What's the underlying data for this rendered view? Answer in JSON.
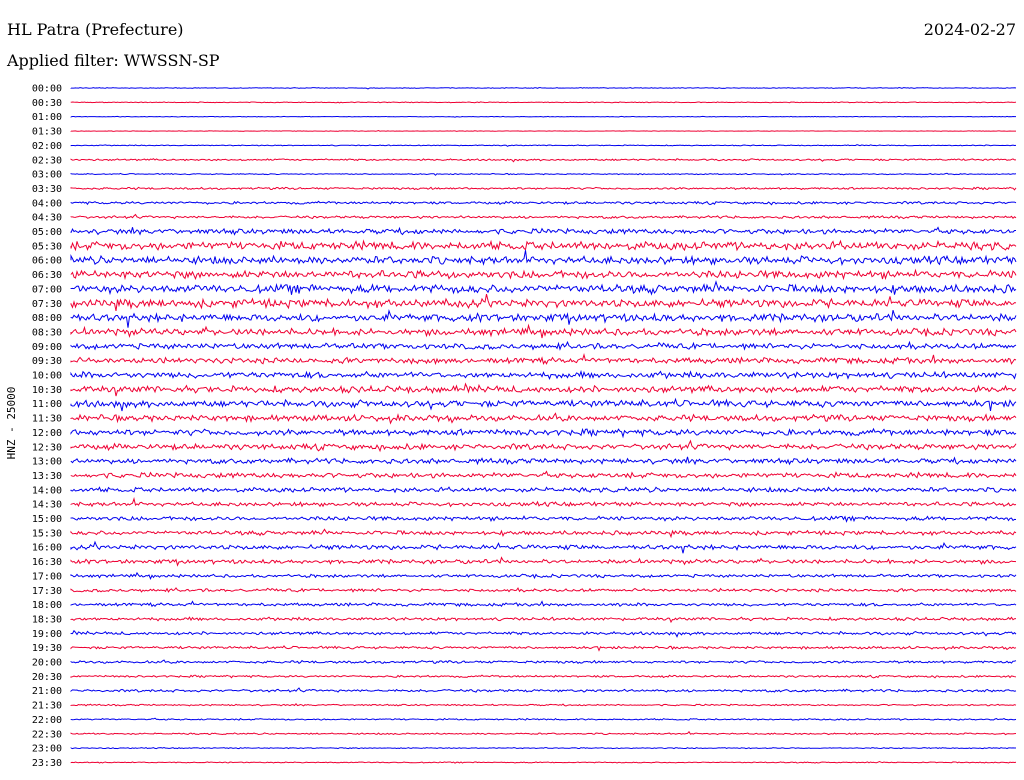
{
  "header": {
    "station": "HL Patra (Prefecture)",
    "date": "2024-02-27",
    "filter_label": "Applied filter: WWSSN-SP"
  },
  "chart_data": {
    "type": "line",
    "ylabel": "HNZ - 25000",
    "row_labels": [
      "00:00",
      "00:30",
      "01:00",
      "01:30",
      "02:00",
      "02:30",
      "03:00",
      "03:30",
      "04:00",
      "04:30",
      "05:00",
      "05:30",
      "06:00",
      "06:30",
      "07:00",
      "07:30",
      "08:00",
      "08:30",
      "09:00",
      "09:30",
      "10:00",
      "10:30",
      "11:00",
      "11:30",
      "12:00",
      "12:30",
      "13:00",
      "13:30",
      "14:00",
      "14:30",
      "15:00",
      "15:30",
      "16:00",
      "16:30",
      "17:00",
      "17:30",
      "18:00",
      "18:30",
      "19:00",
      "19:30",
      "20:00",
      "20:30",
      "21:00",
      "21:30",
      "22:00",
      "22:30",
      "23:00",
      "23:30"
    ],
    "noise_level": [
      0.3,
      0.3,
      0.2,
      0.2,
      0.35,
      0.7,
      0.4,
      0.8,
      1.0,
      1.0,
      2.0,
      3.2,
      3.0,
      3.0,
      3.2,
      3.2,
      3.0,
      2.6,
      2.2,
      2.2,
      2.4,
      2.6,
      2.6,
      2.4,
      2.4,
      2.2,
      2.0,
      2.0,
      1.8,
      1.6,
      1.6,
      1.6,
      1.8,
      1.6,
      1.2,
      1.2,
      1.2,
      1.2,
      1.2,
      1.0,
      1.0,
      0.8,
      1.0,
      0.6,
      0.6,
      0.6,
      0.4,
      0.4
    ],
    "colors": {
      "even": "#0000ee",
      "odd": "#ee0033"
    }
  }
}
